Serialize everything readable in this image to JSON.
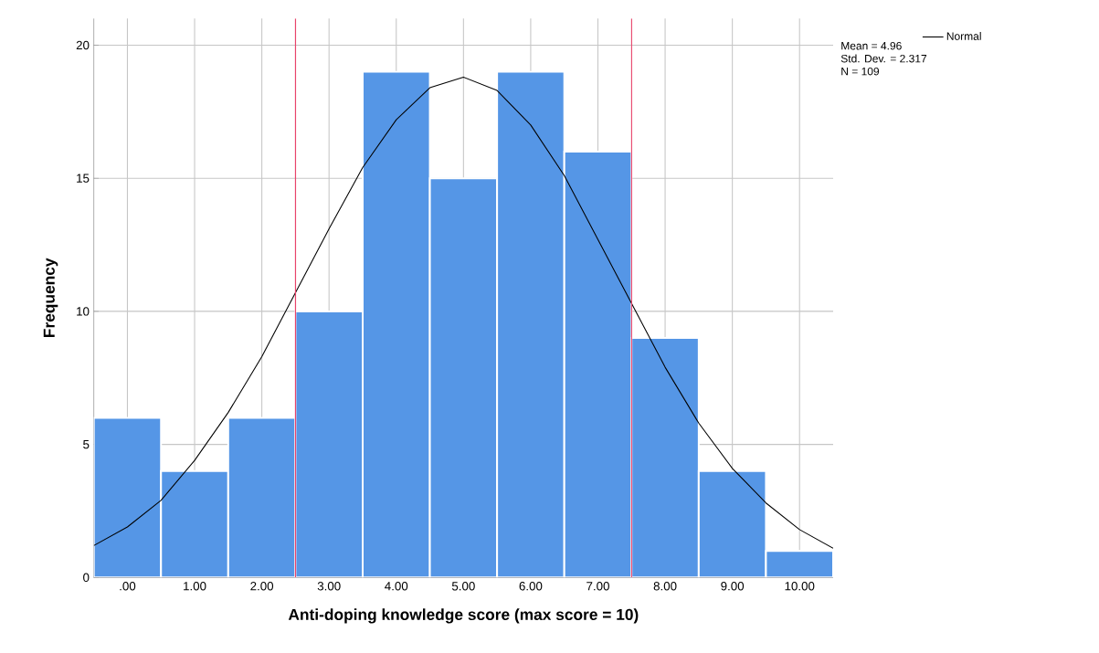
{
  "chart_data": {
    "type": "histogram",
    "xlabel": "Anti-doping knowledge score (max score = 10)",
    "ylabel": "Frequency",
    "bins": [
      -0.5,
      0.5,
      1.5,
      2.5,
      3.5,
      4.5,
      5.5,
      6.5,
      7.5,
      8.5,
      9.5,
      10.5
    ],
    "series": [
      {
        "color": "#5596e6",
        "values": [
          6,
          4,
          6,
          10,
          19,
          15,
          19,
          16,
          9,
          4,
          1
        ]
      },
      {
        "type": "line",
        "name": "Normal",
        "color": "#000000",
        "x": [
          -0.5,
          0,
          0.5,
          1,
          1.5,
          2,
          2.5,
          3,
          3.5,
          4,
          4.5,
          5,
          5.5,
          6,
          6.5,
          7,
          7.5,
          8,
          8.5,
          9,
          9.5,
          10,
          10.5
        ],
        "values": [
          1.2,
          1.9,
          2.9,
          4.4,
          6.2,
          8.3,
          10.7,
          13.1,
          15.4,
          17.2,
          18.4,
          18.8,
          18.3,
          17.0,
          15.1,
          12.7,
          10.3,
          7.9,
          5.8,
          4.1,
          2.8,
          1.8,
          1.1
        ]
      }
    ],
    "xlim": [
      -0.5,
      10.5
    ],
    "xticks": [
      {
        "value": 0,
        "label": ".00"
      },
      {
        "value": 1,
        "label": "1.00"
      },
      {
        "value": 2,
        "label": "2.00"
      },
      {
        "value": 3,
        "label": "3.00"
      },
      {
        "value": 4,
        "label": "4.00"
      },
      {
        "value": 5,
        "label": "5.00"
      },
      {
        "value": 6,
        "label": "6.00"
      },
      {
        "value": 7,
        "label": "7.00"
      },
      {
        "value": 8,
        "label": "8.00"
      },
      {
        "value": 9,
        "label": "9.00"
      },
      {
        "value": 10,
        "label": "10.00"
      }
    ],
    "ylim": [
      0,
      21
    ],
    "yticks": [
      0,
      5,
      10,
      15,
      20
    ],
    "ref_lines": [
      {
        "axis": "x",
        "value": 2.5,
        "color": "#e8436a"
      },
      {
        "axis": "x",
        "value": 7.5,
        "color": "#e8436a"
      }
    ],
    "annotations": [
      "Mean = 4.96",
      "Std. Dev. = 2.317",
      "N = 109"
    ],
    "grid": true,
    "legend": "top right",
    "marker": "none",
    "line_style": "solid"
  }
}
